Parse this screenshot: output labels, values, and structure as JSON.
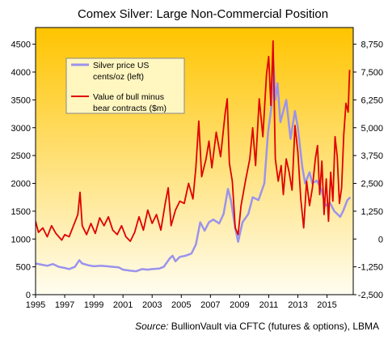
{
  "chart_data": {
    "type": "line",
    "title": "Comex Silver: Large Non-Commercial Position",
    "source_prefix": "Source:",
    "source_text": " BullionVault via CFTC (futures & options), LBMA",
    "x_range": [
      1995,
      2016.8
    ],
    "x_ticks": [
      "1995",
      "1997",
      "1999",
      "2001",
      "2003",
      "2005",
      "2007",
      "2009",
      "2011",
      "2013",
      "2015"
    ],
    "y_left": {
      "range": [
        0,
        4800
      ],
      "ticks": [
        "0",
        "500",
        "1000",
        "1500",
        "2000",
        "2500",
        "3000",
        "3500",
        "4000",
        "4500"
      ]
    },
    "y_right": {
      "range": [
        -2500,
        9500
      ],
      "ticks": [
        "-2,500",
        "-1,250",
        "0",
        "1,250",
        "2,500",
        "3,750",
        "5,000",
        "6,250",
        "7,500",
        "8,750"
      ]
    },
    "gradient": {
      "top": "#ffc400",
      "bottom": "#fffdf0"
    },
    "legend_position": "top-left",
    "series": [
      {
        "name_lines": [
          "Silver price US",
          "cents/oz (left)"
        ],
        "axis": "left",
        "color": "#9b93ec",
        "points": [
          [
            1995.0,
            560
          ],
          [
            1995.4,
            540
          ],
          [
            1995.8,
            520
          ],
          [
            1996.2,
            550
          ],
          [
            1996.6,
            500
          ],
          [
            1997.0,
            480
          ],
          [
            1997.3,
            460
          ],
          [
            1997.7,
            500
          ],
          [
            1998.0,
            620
          ],
          [
            1998.2,
            560
          ],
          [
            1998.6,
            530
          ],
          [
            1999.0,
            510
          ],
          [
            1999.5,
            520
          ],
          [
            1999.9,
            510
          ],
          [
            2000.3,
            500
          ],
          [
            2000.7,
            490
          ],
          [
            2001.0,
            450
          ],
          [
            2001.5,
            430
          ],
          [
            2001.9,
            420
          ],
          [
            2002.3,
            460
          ],
          [
            2002.7,
            450
          ],
          [
            2003.0,
            460
          ],
          [
            2003.5,
            470
          ],
          [
            2003.8,
            500
          ],
          [
            2004.2,
            650
          ],
          [
            2004.4,
            700
          ],
          [
            2004.6,
            600
          ],
          [
            2004.9,
            680
          ],
          [
            2005.3,
            700
          ],
          [
            2005.7,
            740
          ],
          [
            2006.0,
            900
          ],
          [
            2006.3,
            1300
          ],
          [
            2006.6,
            1150
          ],
          [
            2006.9,
            1300
          ],
          [
            2007.2,
            1350
          ],
          [
            2007.6,
            1280
          ],
          [
            2007.9,
            1450
          ],
          [
            2008.2,
            1900
          ],
          [
            2008.4,
            1700
          ],
          [
            2008.7,
            1200
          ],
          [
            2008.9,
            950
          ],
          [
            2009.2,
            1300
          ],
          [
            2009.6,
            1450
          ],
          [
            2009.9,
            1750
          ],
          [
            2010.3,
            1700
          ],
          [
            2010.7,
            2000
          ],
          [
            2010.95,
            2900
          ],
          [
            2011.2,
            3400
          ],
          [
            2011.32,
            4200
          ],
          [
            2011.45,
            3500
          ],
          [
            2011.6,
            3800
          ],
          [
            2011.8,
            3100
          ],
          [
            2012.0,
            3300
          ],
          [
            2012.2,
            3500
          ],
          [
            2012.5,
            2800
          ],
          [
            2012.8,
            3300
          ],
          [
            2013.0,
            3000
          ],
          [
            2013.3,
            2300
          ],
          [
            2013.5,
            2000
          ],
          [
            2013.8,
            2200
          ],
          [
            2014.0,
            2000
          ],
          [
            2014.3,
            2050
          ],
          [
            2014.6,
            1900
          ],
          [
            2014.9,
            1600
          ],
          [
            2015.2,
            1650
          ],
          [
            2015.5,
            1500
          ],
          [
            2015.9,
            1400
          ],
          [
            2016.1,
            1500
          ],
          [
            2016.4,
            1700
          ],
          [
            2016.6,
            1750
          ]
        ]
      },
      {
        "name_lines": [
          "Value of bull minus",
          "bear contracts ($m)"
        ],
        "axis": "right",
        "color": "#e00000",
        "points": [
          [
            1995.0,
            800
          ],
          [
            1995.2,
            300
          ],
          [
            1995.5,
            500
          ],
          [
            1995.8,
            100
          ],
          [
            1996.1,
            600
          ],
          [
            1996.4,
            250
          ],
          [
            1996.8,
            -50
          ],
          [
            1997.0,
            200
          ],
          [
            1997.3,
            100
          ],
          [
            1997.6,
            600
          ],
          [
            1997.9,
            1100
          ],
          [
            1998.05,
            2100
          ],
          [
            1998.2,
            600
          ],
          [
            1998.5,
            200
          ],
          [
            1998.8,
            700
          ],
          [
            1999.1,
            250
          ],
          [
            1999.4,
            950
          ],
          [
            1999.7,
            600
          ],
          [
            2000.0,
            1000
          ],
          [
            2000.3,
            400
          ],
          [
            2000.6,
            200
          ],
          [
            2000.9,
            600
          ],
          [
            2001.2,
            100
          ],
          [
            2001.5,
            -100
          ],
          [
            2001.8,
            300
          ],
          [
            2002.1,
            1000
          ],
          [
            2002.4,
            400
          ],
          [
            2002.7,
            1300
          ],
          [
            2003.0,
            700
          ],
          [
            2003.3,
            1100
          ],
          [
            2003.6,
            400
          ],
          [
            2003.9,
            1600
          ],
          [
            2004.1,
            2300
          ],
          [
            2004.3,
            600
          ],
          [
            2004.6,
            1300
          ],
          [
            2004.9,
            1700
          ],
          [
            2005.2,
            1600
          ],
          [
            2005.5,
            2500
          ],
          [
            2005.8,
            1800
          ],
          [
            2006.0,
            3200
          ],
          [
            2006.2,
            5300
          ],
          [
            2006.4,
            2800
          ],
          [
            2006.7,
            3600
          ],
          [
            2006.9,
            4400
          ],
          [
            2007.1,
            3200
          ],
          [
            2007.4,
            4800
          ],
          [
            2007.7,
            3700
          ],
          [
            2008.0,
            5600
          ],
          [
            2008.15,
            6300
          ],
          [
            2008.3,
            3400
          ],
          [
            2008.5,
            2600
          ],
          [
            2008.7,
            500
          ],
          [
            2008.9,
            200
          ],
          [
            2009.1,
            1500
          ],
          [
            2009.4,
            2600
          ],
          [
            2009.7,
            3600
          ],
          [
            2009.9,
            5000
          ],
          [
            2010.1,
            3300
          ],
          [
            2010.35,
            6300
          ],
          [
            2010.6,
            4600
          ],
          [
            2010.85,
            7400
          ],
          [
            2011.0,
            8200
          ],
          [
            2011.15,
            6000
          ],
          [
            2011.3,
            8900
          ],
          [
            2011.45,
            3600
          ],
          [
            2011.65,
            2600
          ],
          [
            2011.85,
            3300
          ],
          [
            2012.0,
            2000
          ],
          [
            2012.2,
            3600
          ],
          [
            2012.4,
            3000
          ],
          [
            2012.6,
            2200
          ],
          [
            2012.8,
            5100
          ],
          [
            2013.0,
            3900
          ],
          [
            2013.2,
            1800
          ],
          [
            2013.4,
            500
          ],
          [
            2013.6,
            2600
          ],
          [
            2013.8,
            1500
          ],
          [
            2014.0,
            2300
          ],
          [
            2014.2,
            3600
          ],
          [
            2014.35,
            4200
          ],
          [
            2014.5,
            2000
          ],
          [
            2014.65,
            3500
          ],
          [
            2014.8,
            1100
          ],
          [
            2014.95,
            2700
          ],
          [
            2015.1,
            800
          ],
          [
            2015.25,
            3000
          ],
          [
            2015.4,
            1700
          ],
          [
            2015.55,
            4600
          ],
          [
            2015.7,
            3700
          ],
          [
            2015.85,
            1600
          ],
          [
            2016.0,
            2300
          ],
          [
            2016.15,
            4700
          ],
          [
            2016.3,
            6100
          ],
          [
            2016.45,
            5700
          ],
          [
            2016.55,
            7600
          ]
        ]
      }
    ]
  }
}
